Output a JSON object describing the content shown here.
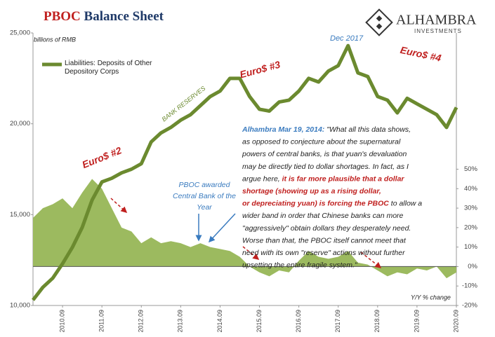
{
  "chart_data": {
    "type": "line",
    "title": [
      "PBOC",
      "Balance Sheet"
    ],
    "title_colors": [
      "#c0201f",
      "#1f3a68"
    ],
    "logo": [
      "ALHAMBRA",
      "INVESTMENTS"
    ],
    "y_axis_label": "billions of RMB",
    "y2_axis_label": "Y/Y % change",
    "categories": [
      null,
      null,
      null,
      "2010.09",
      null,
      null,
      null,
      "2011.09",
      null,
      null,
      null,
      "2012.09",
      null,
      null,
      null,
      "2013.09",
      null,
      null,
      null,
      "2014.09",
      null,
      null,
      null,
      "2015.09",
      null,
      null,
      null,
      "2016.09",
      null,
      null,
      null,
      "2017.09",
      null,
      null,
      null,
      "2018.09",
      null,
      null,
      null,
      "2019.09",
      null,
      null,
      null,
      "2020.09"
    ],
    "series": [
      {
        "name": "Y/Y % change",
        "type": "area",
        "axis": "y2",
        "color": "#9cba5f",
        "values": [
          25,
          30,
          32,
          35,
          30,
          38,
          45,
          40,
          30,
          20,
          18,
          12,
          15,
          12,
          13,
          12,
          10,
          12,
          10,
          9,
          8,
          5,
          0,
          -3,
          -5,
          -2,
          -3,
          3,
          8,
          5,
          4,
          5,
          8,
          2,
          1,
          -2,
          -5,
          -3,
          -4,
          -1,
          -2,
          0,
          -6,
          -3
        ]
      },
      {
        "name": "Liabilities: Deposits of Other Depository Corps",
        "type": "line",
        "axis": "y",
        "color": "#6b8a2f",
        "values": [
          10300,
          11000,
          11500,
          12300,
          13200,
          14300,
          15800,
          16800,
          17000,
          17300,
          17500,
          17800,
          19000,
          19500,
          19800,
          20200,
          20500,
          21000,
          21500,
          21800,
          22500,
          22500,
          21500,
          20800,
          20700,
          21200,
          21300,
          21800,
          22500,
          22300,
          22900,
          23200,
          24300,
          22800,
          22600,
          21500,
          21300,
          20600,
          21400,
          21100,
          20800,
          20500,
          19800,
          20900
        ]
      }
    ],
    "ylim": [
      10000,
      25000
    ],
    "yticks": [
      {
        "value": 10000,
        "label": "10,000"
      },
      {
        "value": 15000,
        "label": "15,000"
      },
      {
        "value": 20000,
        "label": "20,000"
      },
      {
        "value": 25000,
        "label": "25,000"
      }
    ],
    "y2lim": [
      -20,
      120
    ],
    "y2ticks": [
      {
        "value": -20,
        "label": "-20%"
      },
      {
        "value": -10,
        "label": "-10%"
      },
      {
        "value": 0,
        "label": "0%"
      },
      {
        "value": 10,
        "label": "10%"
      },
      {
        "value": 20,
        "label": "20%"
      },
      {
        "value": 30,
        "label": "30%"
      },
      {
        "value": 40,
        "label": "40%"
      },
      {
        "value": 50,
        "label": "50%"
      }
    ],
    "annotations": [
      "Dec 2017",
      "Euro$ #4",
      "Euro$ #3",
      "BANK RESERVES",
      "Euro$ #2",
      "PBOC awarded",
      "Central Bank of the",
      "Year"
    ],
    "quote": [
      [
        {
          "text": "Alhambra Mar 19, 2014: ",
          "color": "#3a7bbf"
        },
        {
          "text": "\"What all this data shows,",
          "color": "#222222"
        }
      ],
      [
        {
          "text": "as opposed to conjecture about the supernatural",
          "color": "#222222"
        }
      ],
      [
        {
          "text": "powers of central banks, is that yuan's devaluation",
          "color": "#222222"
        }
      ],
      [
        {
          "text": "may be directly tied to dollar shortages. In fact, as I",
          "color": "#222222"
        }
      ],
      [
        {
          "text": "argue here, ",
          "color": "#222222"
        },
        {
          "text": "it is far more plausible that a dollar",
          "color": "#c0201f"
        }
      ],
      [
        {
          "text": "shortage (showing up as a rising dollar,",
          "color": "#c0201f"
        }
      ],
      [
        {
          "text": "or depreciating yuan) is forcing the PBOC",
          "color": "#c0201f"
        },
        {
          "text": " to allow a",
          "color": "#222222"
        }
      ],
      [
        {
          "text": "wider band in order that Chinese banks can more",
          "color": "#222222"
        }
      ],
      [
        {
          "text": "\"aggressively\" obtain dollars they desperately need.",
          "color": "#222222"
        }
      ],
      [
        {
          "text": "Worse than that, the PBOC itself cannot meet that",
          "color": "#222222"
        }
      ],
      [
        {
          "text": "need with its own \"reserve\" actions without further",
          "color": "#222222"
        }
      ],
      [
        {
          "text": "upsetting the entire fragile system.\"",
          "color": "#222222"
        }
      ]
    ]
  }
}
